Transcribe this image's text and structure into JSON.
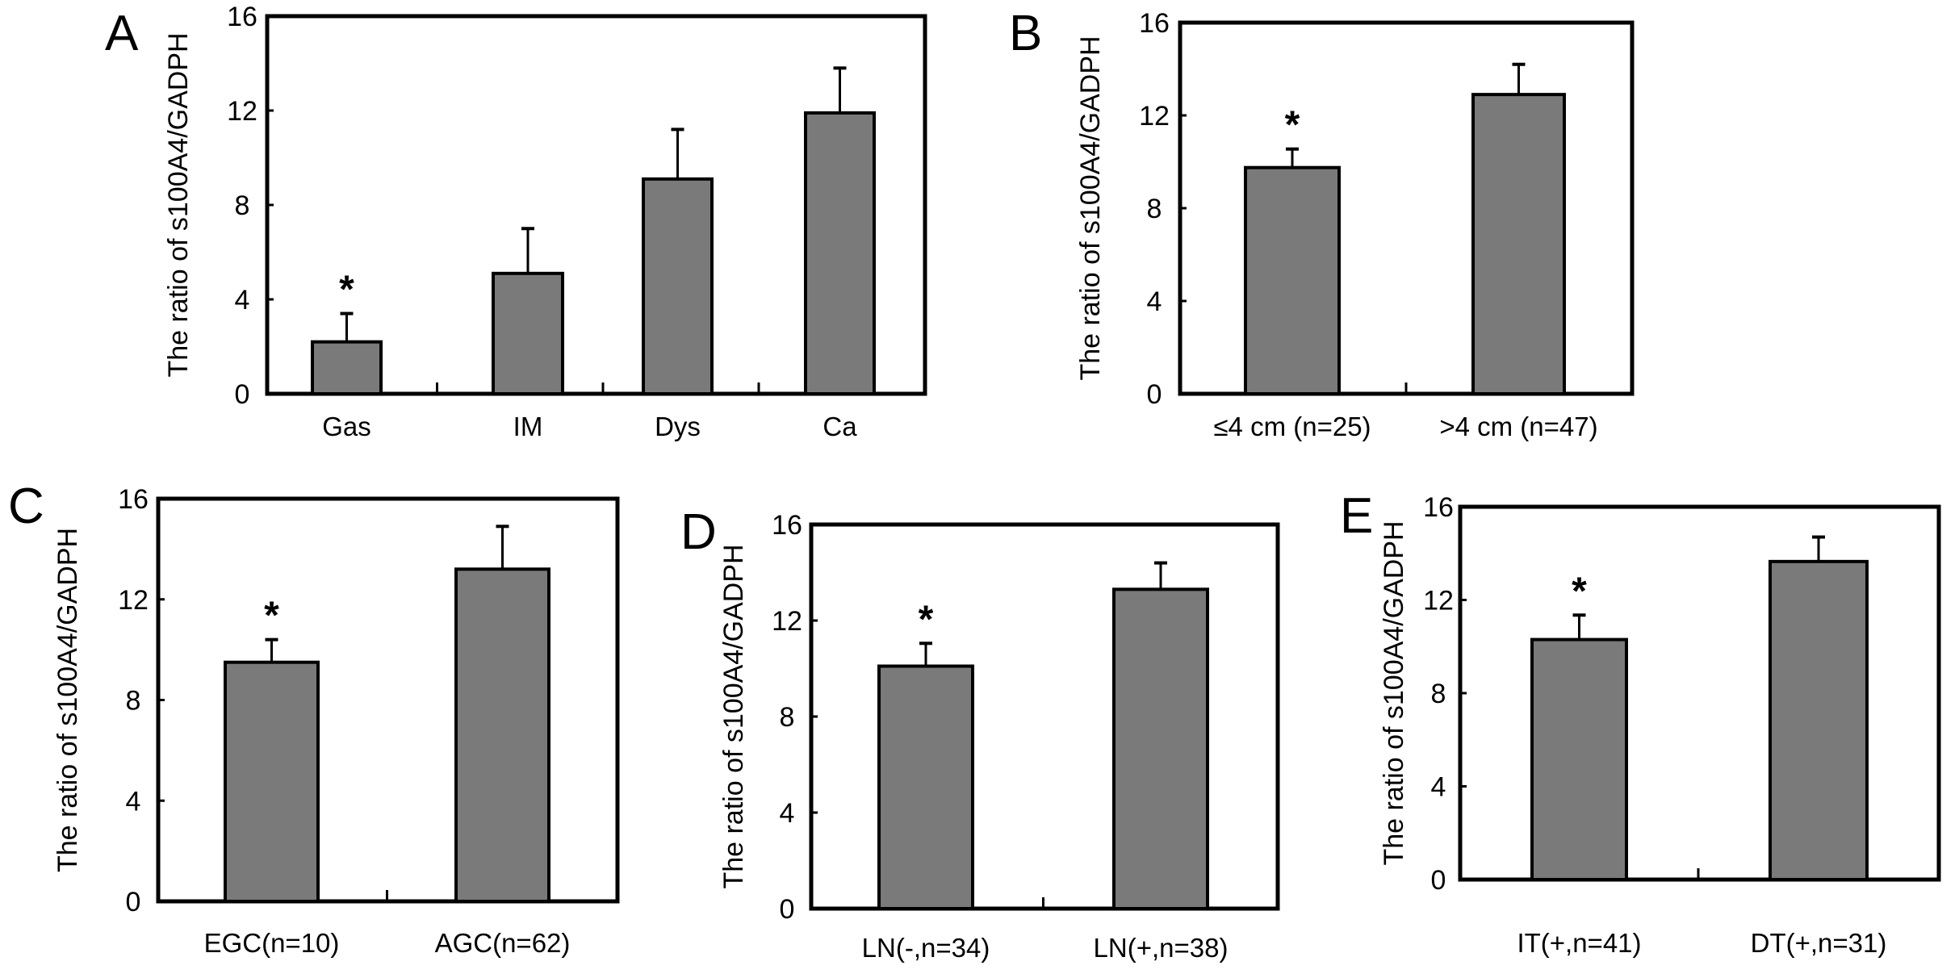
{
  "colors": {
    "bar_fill": "#7a7a7a",
    "stroke": "#000000",
    "background": "#ffffff"
  },
  "chart_data": [
    {
      "panel": "A",
      "type": "bar",
      "ylabel": "The ratio of s100A4/GADPH",
      "ylim": [
        0,
        16
      ],
      "yticks": [
        "0",
        "4",
        "8",
        "12",
        "16"
      ],
      "categories": [
        "Gas",
        "IM",
        "Dys",
        "Ca"
      ],
      "values": [
        2.2,
        5.1,
        9.1,
        11.9
      ],
      "error_upper": [
        3.4,
        7.0,
        11.2,
        13.8
      ],
      "significance": [
        "*",
        "",
        "",
        ""
      ]
    },
    {
      "panel": "B",
      "type": "bar",
      "ylabel": "The ratio of s100A4/GADPH",
      "ylim": [
        0,
        16
      ],
      "yticks": [
        "0",
        "4",
        "8",
        "12",
        "16"
      ],
      "categories": [
        "≤4 cm (n=25)",
        ">4 cm (n=47)"
      ],
      "values": [
        9.75,
        12.9
      ],
      "error_upper": [
        10.55,
        14.2
      ],
      "significance": [
        "*",
        ""
      ]
    },
    {
      "panel": "C",
      "type": "bar",
      "ylabel": "The ratio of s100A4/GADPH",
      "ylim": [
        0,
        16
      ],
      "yticks": [
        "0",
        "4",
        "8",
        "12",
        "16"
      ],
      "categories": [
        "EGC(n=10)",
        "AGC(n=62)"
      ],
      "values": [
        9.5,
        13.2
      ],
      "error_upper": [
        10.4,
        14.9
      ],
      "significance": [
        "*",
        ""
      ]
    },
    {
      "panel": "D",
      "type": "bar",
      "ylabel": "The ratio of s100A4/GADPH",
      "ylim": [
        0,
        16
      ],
      "yticks": [
        "0",
        "4",
        "8",
        "12",
        "16"
      ],
      "categories": [
        "LN(-,n=34)",
        "LN(+,n=38)"
      ],
      "values": [
        10.1,
        13.3
      ],
      "error_upper": [
        11.05,
        14.4
      ],
      "significance": [
        "*",
        ""
      ]
    },
    {
      "panel": "E",
      "type": "bar",
      "ylabel": "The ratio of s100A4/GADPH",
      "ylim": [
        0,
        16
      ],
      "yticks": [
        "0",
        "4",
        "8",
        "12",
        "16"
      ],
      "categories": [
        "IT(+,n=41)",
        "DT(+,n=31)"
      ],
      "values": [
        10.3,
        13.65
      ],
      "error_upper": [
        11.35,
        14.7
      ],
      "significance": [
        "*",
        ""
      ]
    }
  ]
}
